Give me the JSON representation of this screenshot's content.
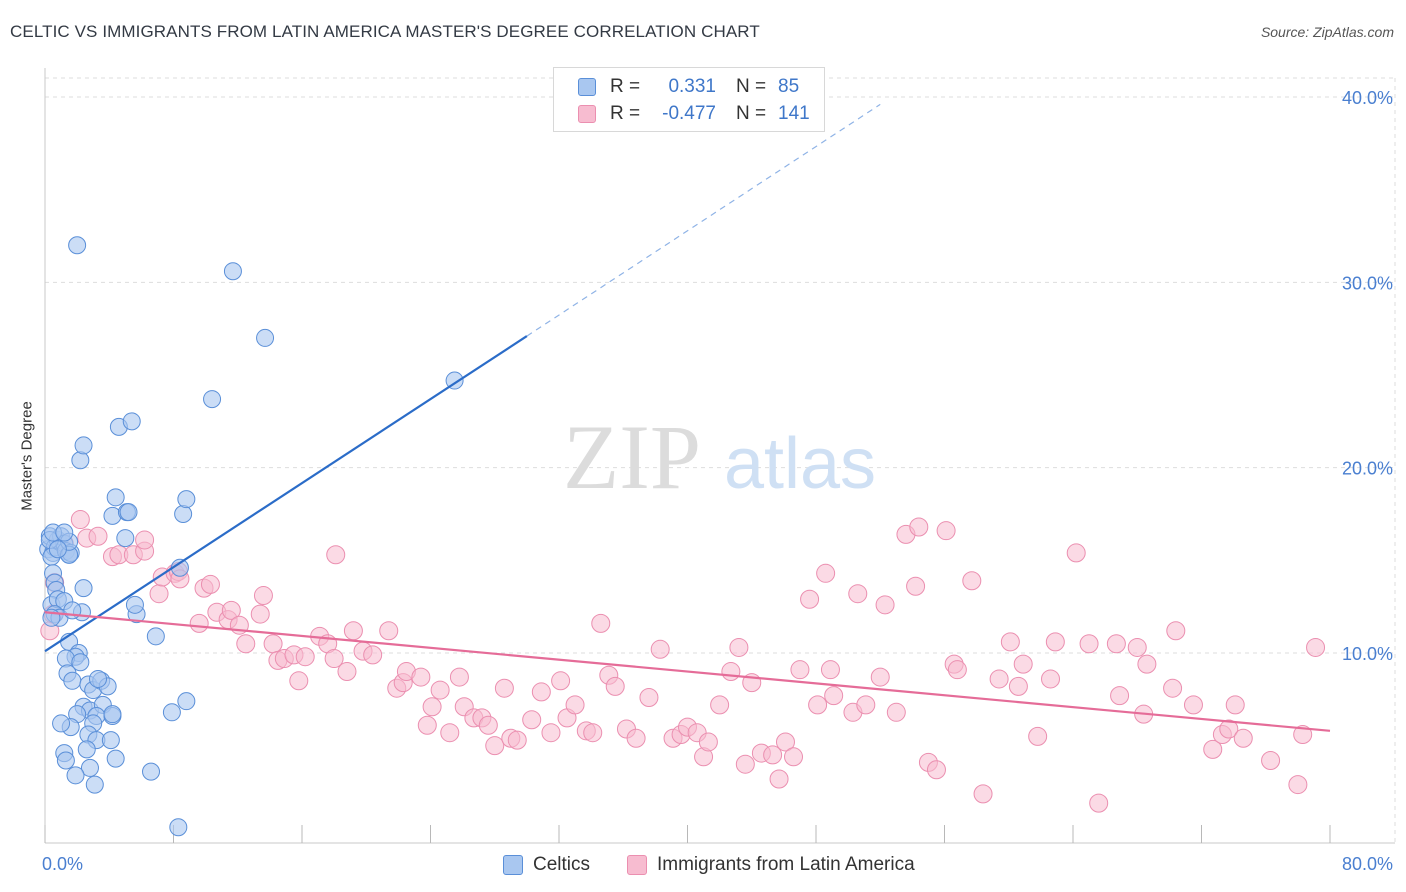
{
  "header": {
    "title": "CELTIC VS IMMIGRANTS FROM LATIN AMERICA MASTER'S DEGREE CORRELATION CHART",
    "source": "Source: ZipAtlas.com"
  },
  "watermark": {
    "zip": "ZIP",
    "atlas": "atlas"
  },
  "colors": {
    "celtic_fill": "#a9c7f0",
    "celtic_stroke": "#5a8fd8",
    "celtic_line": "#2b6cc8",
    "latin_fill": "#f7bcd0",
    "latin_stroke": "#eb8fb0",
    "latin_line": "#e56c98",
    "tick_text": "#4a7fd0",
    "grid": "#dddddd"
  },
  "legend": {
    "rows": [
      {
        "series": "celtic",
        "r_label": "R =",
        "r_value": "0.331",
        "n_label": "N =",
        "n_value": "85"
      },
      {
        "series": "latin",
        "r_label": "R =",
        "r_value": "-0.477",
        "n_label": "N =",
        "n_value": "141"
      }
    ]
  },
  "bottom_legend": {
    "celtic": "Celtics",
    "latin": "Immigrants from Latin America"
  },
  "chart_data": {
    "type": "scatter",
    "title": "CELTIC VS IMMIGRANTS FROM LATIN AMERICA MASTER'S DEGREE CORRELATION CHART",
    "xlabel": "",
    "ylabel": "Master's Degree",
    "xlim": [
      0,
      80
    ],
    "ylim": [
      0,
      42
    ],
    "x_tick_labels": [
      "0.0%",
      "80.0%"
    ],
    "y_ticks": [
      10,
      20,
      30,
      40
    ],
    "y_tick_labels": [
      "10.0%",
      "20.0%",
      "30.0%",
      "40.0%"
    ],
    "grid": true,
    "series": [
      {
        "name": "Celtics",
        "R": 0.331,
        "N": 85,
        "trend": {
          "x0": 0,
          "y0": 10.1,
          "x1": 30,
          "y1": 27.1,
          "dash_to_x": 52,
          "dash_to_y": 39.6
        },
        "points": [
          [
            0.2,
            15.6
          ],
          [
            0.3,
            16.3
          ],
          [
            0.5,
            15.4
          ],
          [
            0.6,
            15.7
          ],
          [
            0.4,
            15.2
          ],
          [
            0.8,
            16.1
          ],
          [
            1.0,
            16.3
          ],
          [
            1.2,
            15.9
          ],
          [
            1.3,
            15.5
          ],
          [
            1.5,
            15.3
          ],
          [
            1.6,
            15.4
          ],
          [
            0.5,
            14.3
          ],
          [
            0.6,
            13.8
          ],
          [
            0.7,
            13.4
          ],
          [
            0.4,
            12.6
          ],
          [
            0.8,
            12.9
          ],
          [
            1.2,
            12.8
          ],
          [
            0.6,
            12.1
          ],
          [
            0.9,
            11.9
          ],
          [
            2.4,
            13.5
          ],
          [
            2.3,
            12.2
          ],
          [
            1.7,
            12.3
          ],
          [
            1.5,
            10.6
          ],
          [
            2.1,
            10.0
          ],
          [
            1.9,
            9.8
          ],
          [
            1.3,
            9.7
          ],
          [
            2.2,
            9.5
          ],
          [
            1.4,
            8.9
          ],
          [
            1.7,
            8.5
          ],
          [
            2.7,
            8.3
          ],
          [
            3.0,
            8.0
          ],
          [
            3.5,
            8.5
          ],
          [
            3.9,
            8.2
          ],
          [
            3.3,
            8.6
          ],
          [
            2.4,
            7.1
          ],
          [
            2.8,
            6.9
          ],
          [
            3.6,
            7.2
          ],
          [
            2.0,
            6.7
          ],
          [
            3.2,
            6.6
          ],
          [
            4.2,
            6.6
          ],
          [
            3.0,
            6.2
          ],
          [
            1.6,
            6.0
          ],
          [
            1.0,
            6.2
          ],
          [
            4.2,
            6.7
          ],
          [
            2.7,
            5.6
          ],
          [
            3.2,
            5.3
          ],
          [
            4.1,
            5.3
          ],
          [
            2.6,
            4.8
          ],
          [
            1.2,
            4.6
          ],
          [
            1.3,
            4.2
          ],
          [
            4.4,
            4.3
          ],
          [
            2.8,
            3.8
          ],
          [
            1.9,
            3.4
          ],
          [
            3.1,
            2.9
          ],
          [
            6.6,
            3.6
          ],
          [
            8.3,
            0.6
          ],
          [
            7.9,
            6.8
          ],
          [
            8.8,
            7.4
          ],
          [
            6.9,
            10.9
          ],
          [
            5.7,
            12.1
          ],
          [
            5.6,
            12.6
          ],
          [
            4.2,
            17.4
          ],
          [
            4.4,
            18.4
          ],
          [
            5.1,
            17.6
          ],
          [
            5.2,
            17.6
          ],
          [
            5.0,
            16.2
          ],
          [
            8.4,
            14.6
          ],
          [
            8.6,
            17.5
          ],
          [
            8.8,
            18.3
          ],
          [
            2.2,
            20.4
          ],
          [
            2.4,
            21.2
          ],
          [
            4.6,
            22.2
          ],
          [
            5.4,
            22.5
          ],
          [
            10.4,
            23.7
          ],
          [
            11.7,
            30.6
          ],
          [
            13.7,
            27.0
          ],
          [
            2.0,
            32.0
          ],
          [
            25.5,
            24.7
          ],
          [
            1.5,
            15.3
          ],
          [
            0.3,
            16.1
          ],
          [
            0.4,
            11.9
          ],
          [
            1.5,
            16.0
          ],
          [
            0.8,
            15.6
          ],
          [
            0.5,
            16.5
          ],
          [
            1.2,
            16.5
          ]
        ]
      },
      {
        "name": "Immigrants from Latin America",
        "R": -0.477,
        "N": 141,
        "trend": {
          "x0": 0,
          "y0": 12.2,
          "x1": 80,
          "y1": 5.8
        },
        "points": [
          [
            0.3,
            11.2
          ],
          [
            0.5,
            12.1
          ],
          [
            0.6,
            13.8
          ],
          [
            1.2,
            15.9
          ],
          [
            2.2,
            17.2
          ],
          [
            2.6,
            16.2
          ],
          [
            3.3,
            16.3
          ],
          [
            4.2,
            15.2
          ],
          [
            4.6,
            15.3
          ],
          [
            5.5,
            15.3
          ],
          [
            6.2,
            15.5
          ],
          [
            6.2,
            16.1
          ],
          [
            7.1,
            13.2
          ],
          [
            7.3,
            14.1
          ],
          [
            8.1,
            14.3
          ],
          [
            8.3,
            14.4
          ],
          [
            8.4,
            14.0
          ],
          [
            9.6,
            11.6
          ],
          [
            9.9,
            13.5
          ],
          [
            10.3,
            13.7
          ],
          [
            10.7,
            12.2
          ],
          [
            11.4,
            11.8
          ],
          [
            11.6,
            12.3
          ],
          [
            12.1,
            11.5
          ],
          [
            12.5,
            10.5
          ],
          [
            13.4,
            12.1
          ],
          [
            13.6,
            13.1
          ],
          [
            14.2,
            10.5
          ],
          [
            14.5,
            9.6
          ],
          [
            14.9,
            9.7
          ],
          [
            15.5,
            9.9
          ],
          [
            15.8,
            8.5
          ],
          [
            16.2,
            9.8
          ],
          [
            17.1,
            10.9
          ],
          [
            17.6,
            10.5
          ],
          [
            18.0,
            9.7
          ],
          [
            18.1,
            15.3
          ],
          [
            18.8,
            9.0
          ],
          [
            19.2,
            11.2
          ],
          [
            19.8,
            10.1
          ],
          [
            20.4,
            9.9
          ],
          [
            21.4,
            11.2
          ],
          [
            21.9,
            8.1
          ],
          [
            22.3,
            8.4
          ],
          [
            22.5,
            9.0
          ],
          [
            23.4,
            8.7
          ],
          [
            23.8,
            6.1
          ],
          [
            24.1,
            7.1
          ],
          [
            24.6,
            8.0
          ],
          [
            25.2,
            5.7
          ],
          [
            25.8,
            8.7
          ],
          [
            26.1,
            7.1
          ],
          [
            26.7,
            6.5
          ],
          [
            27.2,
            6.5
          ],
          [
            27.6,
            6.1
          ],
          [
            28.0,
            5.0
          ],
          [
            28.6,
            8.1
          ],
          [
            29.0,
            5.4
          ],
          [
            29.4,
            5.3
          ],
          [
            30.3,
            6.4
          ],
          [
            30.9,
            7.9
          ],
          [
            31.5,
            5.7
          ],
          [
            32.1,
            8.5
          ],
          [
            32.5,
            6.5
          ],
          [
            33.0,
            7.2
          ],
          [
            33.7,
            5.8
          ],
          [
            34.1,
            5.7
          ],
          [
            34.6,
            11.6
          ],
          [
            35.1,
            8.8
          ],
          [
            35.5,
            8.2
          ],
          [
            36.2,
            5.9
          ],
          [
            36.8,
            5.4
          ],
          [
            37.6,
            7.6
          ],
          [
            38.3,
            10.2
          ],
          [
            39.1,
            5.4
          ],
          [
            39.6,
            5.6
          ],
          [
            40.0,
            6.0
          ],
          [
            40.6,
            5.7
          ],
          [
            41.0,
            4.4
          ],
          [
            41.3,
            5.2
          ],
          [
            42.0,
            7.2
          ],
          [
            42.7,
            9.0
          ],
          [
            43.2,
            10.3
          ],
          [
            43.6,
            4.0
          ],
          [
            44.0,
            8.4
          ],
          [
            44.6,
            4.6
          ],
          [
            45.3,
            4.5
          ],
          [
            45.7,
            3.2
          ],
          [
            46.1,
            5.2
          ],
          [
            46.6,
            4.4
          ],
          [
            47.0,
            9.1
          ],
          [
            47.6,
            12.9
          ],
          [
            48.1,
            7.2
          ],
          [
            48.6,
            14.3
          ],
          [
            48.9,
            9.1
          ],
          [
            49.1,
            7.7
          ],
          [
            50.3,
            6.8
          ],
          [
            50.6,
            13.2
          ],
          [
            51.1,
            7.2
          ],
          [
            52.0,
            8.7
          ],
          [
            52.3,
            12.6
          ],
          [
            53.0,
            6.8
          ],
          [
            53.6,
            16.4
          ],
          [
            54.2,
            13.6
          ],
          [
            54.4,
            16.8
          ],
          [
            55.0,
            4.1
          ],
          [
            55.5,
            3.7
          ],
          [
            56.1,
            16.6
          ],
          [
            56.6,
            9.4
          ],
          [
            56.8,
            9.1
          ],
          [
            57.7,
            13.9
          ],
          [
            58.4,
            2.4
          ],
          [
            59.4,
            8.6
          ],
          [
            60.1,
            10.6
          ],
          [
            60.6,
            8.2
          ],
          [
            60.9,
            9.4
          ],
          [
            61.8,
            5.5
          ],
          [
            62.6,
            8.6
          ],
          [
            62.9,
            10.6
          ],
          [
            64.2,
            15.4
          ],
          [
            65.0,
            10.5
          ],
          [
            65.6,
            1.9
          ],
          [
            66.7,
            10.5
          ],
          [
            66.9,
            7.7
          ],
          [
            68.0,
            10.3
          ],
          [
            68.4,
            6.7
          ],
          [
            68.6,
            9.4
          ],
          [
            70.2,
            8.1
          ],
          [
            70.4,
            11.2
          ],
          [
            71.5,
            7.2
          ],
          [
            72.7,
            4.8
          ],
          [
            73.3,
            5.6
          ],
          [
            73.7,
            5.9
          ],
          [
            74.1,
            7.2
          ],
          [
            74.6,
            5.4
          ],
          [
            76.3,
            4.2
          ],
          [
            78.0,
            2.9
          ],
          [
            78.3,
            5.6
          ],
          [
            79.1,
            10.3
          ]
        ]
      }
    ]
  }
}
